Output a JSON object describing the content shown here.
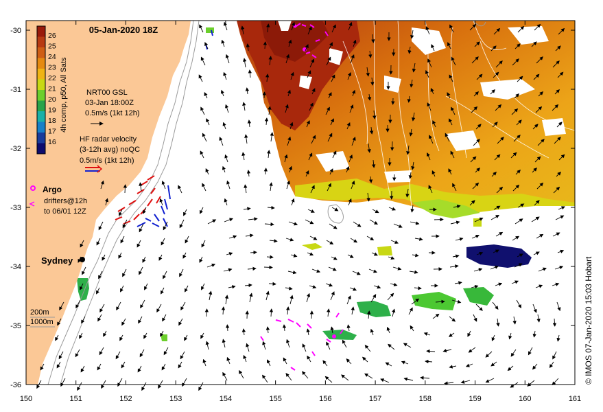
{
  "title": "05-Jan-2020 18Z",
  "copyright": "© IMOS 07-Jan-2020 15:03 Hobart",
  "colorbar": {
    "label": "4h comp, p50, All Sats",
    "ticks": [
      "26",
      "25",
      "24",
      "23",
      "22",
      "21",
      "20",
      "19",
      "18",
      "17",
      "16"
    ],
    "colors": [
      "#9a1a0a",
      "#b83a12",
      "#cf5e14",
      "#e58a10",
      "#f0b414",
      "#c8d814",
      "#6ccf2c",
      "#2aa34a",
      "#1ab0a8",
      "#1880c8",
      "#1a3c9c",
      "#0e0c6e"
    ]
  },
  "legend": {
    "gsl_title": "NRT00 GSL",
    "gsl_date": "03-Jan 18:00Z",
    "gsl_scale": "0.5m/s (1kt 12h)",
    "hf_title": "HF radar velocity",
    "hf_avg": "(3-12h avg) noQC",
    "hf_scale": "0.5m/s (1kt 12h)",
    "argo": "Argo",
    "drifters_1": "drifters@12h",
    "drifters_2": "to 06/01 12Z",
    "city": "Sydney",
    "depth_200": "200m",
    "depth_1000": "1000m"
  },
  "axes": {
    "x_ticks": [
      "150",
      "151",
      "152",
      "153",
      "154",
      "155",
      "156",
      "157",
      "158",
      "159",
      "160",
      "161"
    ],
    "y_ticks": [
      "-30",
      "-31",
      "-32",
      "-33",
      "-34",
      "-35",
      "-36"
    ]
  },
  "colors": {
    "land": "#fbc896",
    "ocean": "#ffffff",
    "argo": "#ff00ff",
    "hf_red": "#e01010",
    "hf_blue": "#1020d0",
    "sst_warm": "#e8960e",
    "sst_hot": "#b02a0c"
  }
}
